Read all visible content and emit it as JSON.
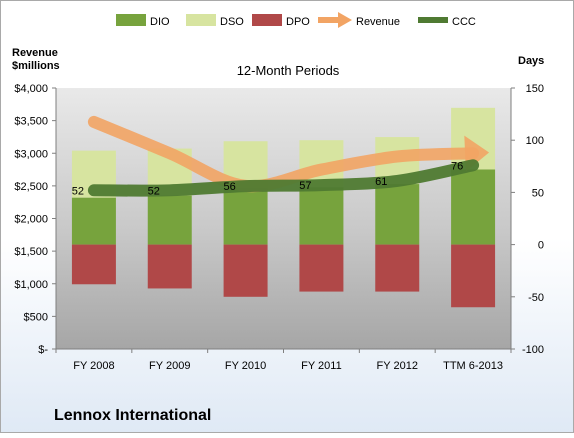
{
  "chart_data": {
    "type": "bar",
    "title": "12-Month Periods",
    "company": "Lennox International",
    "left_axis_title": [
      "Revenue",
      "$millions"
    ],
    "right_axis_title": "Days",
    "categories": [
      "FY 2008",
      "FY 2009",
      "FY 2010",
      "FY 2011",
      "FY 2012",
      "TTM 6-2013"
    ],
    "left_axis": {
      "range": [
        0,
        4000
      ],
      "ticks": [
        0,
        500,
        1000,
        1500,
        2000,
        2500,
        3000,
        3500,
        4000
      ],
      "tick_labels": [
        "$-",
        "$500",
        "$1,000",
        "$1,500",
        "$2,000",
        "$2,500",
        "$3,000",
        "$3,500",
        "$4,000"
      ]
    },
    "right_axis": {
      "range": [
        -100,
        150
      ],
      "ticks": [
        -100,
        -50,
        0,
        50,
        100,
        150
      ],
      "tick_labels": [
        "-100",
        "-50",
        "0",
        "50",
        "100",
        "150"
      ]
    },
    "legend": [
      {
        "name": "DIO",
        "kind": "bar",
        "color": "#77a33d"
      },
      {
        "name": "DSO",
        "kind": "bar",
        "color": "#d7e4a0"
      },
      {
        "name": "DPO",
        "kind": "bar",
        "color": "#b04848"
      },
      {
        "name": "Revenue",
        "kind": "arrow",
        "color": "#f2a464"
      },
      {
        "name": "CCC",
        "kind": "line",
        "color": "#4f7a32"
      }
    ],
    "series": [
      {
        "name": "DIO",
        "axis": "right",
        "values": [
          45,
          47,
          54,
          55,
          58,
          72
        ]
      },
      {
        "name": "DSO",
        "axis": "right",
        "values": [
          45,
          45,
          45,
          45,
          45,
          59
        ]
      },
      {
        "name": "DPO",
        "axis": "right",
        "values": [
          -38,
          -42,
          -50,
          -45,
          -45,
          -60
        ]
      },
      {
        "name": "Revenue",
        "axis": "left",
        "values": [
          3480,
          3000,
          2500,
          2750,
          2950,
          3000
        ]
      },
      {
        "name": "CCC",
        "axis": "right",
        "values": [
          52,
          52,
          56,
          57,
          61,
          76
        ]
      }
    ],
    "ccc_labels": [
      "52",
      "52",
      "56",
      "57",
      "61",
      "76"
    ],
    "legend_position": "top",
    "grid": false
  }
}
